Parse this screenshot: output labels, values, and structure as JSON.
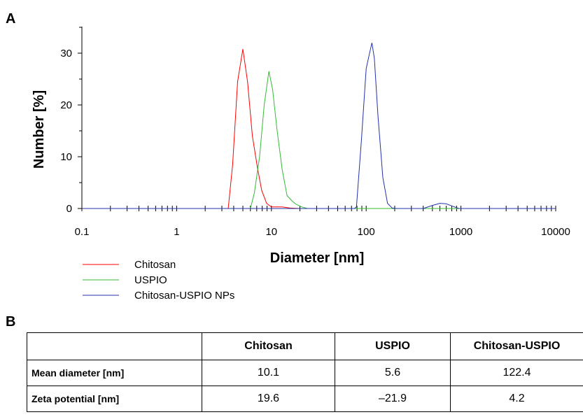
{
  "panel_a_label": "A",
  "panel_b_label": "B",
  "chart_data": {
    "type": "line",
    "xlabel": "Diameter [nm]",
    "ylabel": "Number [%]",
    "xscale": "log",
    "xlim": [
      0.1,
      10000
    ],
    "ylim": [
      0,
      35
    ],
    "x_ticks": [
      "0.1",
      "1",
      "10",
      "100",
      "1000",
      "10000"
    ],
    "y_ticks": [
      "0",
      "10",
      "20",
      "30"
    ],
    "legend_placement": "bottom-left",
    "grid": false,
    "series": [
      {
        "name": "Chitosan",
        "color": "#ff0000",
        "x": [
          0.1,
          3.5,
          3.9,
          4.4,
          5.0,
          5.6,
          6.3,
          7.1,
          7.9,
          8.9,
          10.0,
          11.2,
          13.0,
          15.5,
          20,
          10000
        ],
        "y": [
          0,
          0,
          8.5,
          24.5,
          30.8,
          24.5,
          14.0,
          8.0,
          3.5,
          1.0,
          0.3,
          0.3,
          0.3,
          0.1,
          0,
          0
        ]
      },
      {
        "name": "USPIO",
        "color": "#33bb33",
        "x": [
          0.1,
          6.0,
          6.6,
          7.5,
          8.4,
          9.4,
          10.3,
          11.5,
          13.0,
          14.6,
          16.4,
          18.3,
          21.0,
          24.0,
          10000
        ],
        "y": [
          0,
          0,
          3.0,
          10.0,
          20.0,
          26.5,
          23.0,
          15.0,
          7.5,
          2.5,
          1.5,
          0.8,
          0.3,
          0,
          0
        ]
      },
      {
        "name": "Chitosan-USPIO NPs",
        "color": "#2233aa",
        "x": [
          0.1,
          75,
          79,
          89,
          100,
          107,
          115,
          122,
          133,
          150,
          168,
          188,
          210,
          400,
          500,
          600,
          700,
          800,
          950,
          10000
        ],
        "y": [
          0,
          0,
          0.3,
          13.0,
          27.0,
          29.5,
          32.0,
          29.0,
          18.0,
          6.0,
          1.0,
          0.1,
          0,
          0,
          0.6,
          1.0,
          0.9,
          0.5,
          0,
          0
        ]
      }
    ]
  },
  "table": {
    "headers": [
      "",
      "Chitosan",
      "USPIO",
      "Chitosan-USPIO"
    ],
    "rows": [
      {
        "label": "Mean diameter [nm]",
        "values": [
          "10.1",
          "5.6",
          "122.4"
        ]
      },
      {
        "label": "Zeta potential [nm]",
        "values": [
          "19.6",
          "–21.9",
          "4.2"
        ]
      }
    ]
  }
}
